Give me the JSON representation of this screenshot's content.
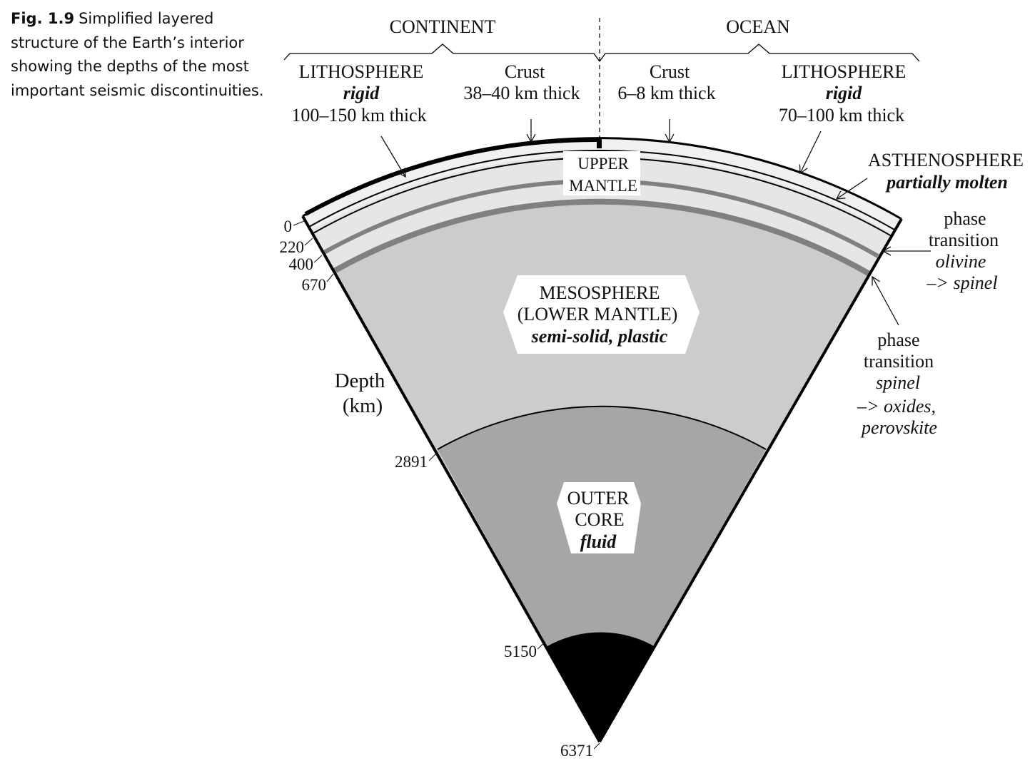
{
  "caption": {
    "fig_label": "Fig. 1.9",
    "text": "Simplified layered structure of the Earth’s interior showing the depths of the most important seismic discontinuities."
  },
  "headers": {
    "continent": "CONTINENT",
    "ocean": "OCEAN"
  },
  "continent": {
    "lithosphere": {
      "name": "LITHOSPHERE",
      "state": "rigid",
      "thickness": "100–150 km thick"
    },
    "crust": {
      "name": "Crust",
      "thickness": "38–40 km thick"
    }
  },
  "ocean": {
    "crust": {
      "name": "Crust",
      "thickness": "6–8 km thick"
    },
    "lithosphere": {
      "name": "LITHOSPHERE",
      "state": "rigid",
      "thickness": "70–100 km thick"
    }
  },
  "asthenosphere": {
    "name": "ASTHENOSPHERE",
    "state": "partially molten"
  },
  "upper_mantle": {
    "line1": "UPPER",
    "line2": "MANTLE"
  },
  "mesosphere": {
    "line1": "MESOSPHERE",
    "line2": "(LOWER MANTLE)",
    "state": "semi-solid, plastic"
  },
  "outer_core": {
    "line1": "OUTER",
    "line2": "CORE",
    "state": "fluid"
  },
  "phase_transition_1": {
    "line1": "phase",
    "line2": "transition",
    "from": "olivine",
    "to": "–> spinel"
  },
  "phase_transition_2": {
    "line1": "phase",
    "line2": "transition",
    "from": "spinel",
    "to": "–> oxides,",
    "extra": "perovskite"
  },
  "depth_axis": {
    "label_line1": "Depth",
    "label_line2": "(km)",
    "ticks": [
      "0",
      "220",
      "400",
      "670",
      "2891",
      "5150",
      "6371"
    ]
  },
  "colors": {
    "mesosphere": "#cccccc",
    "outer_core": "#a6a6a6",
    "inner_core": "#000000",
    "asthenosphere": "#e6e6e6",
    "lithosphere": "#f0f0f0",
    "discontinuity": "#808080"
  }
}
